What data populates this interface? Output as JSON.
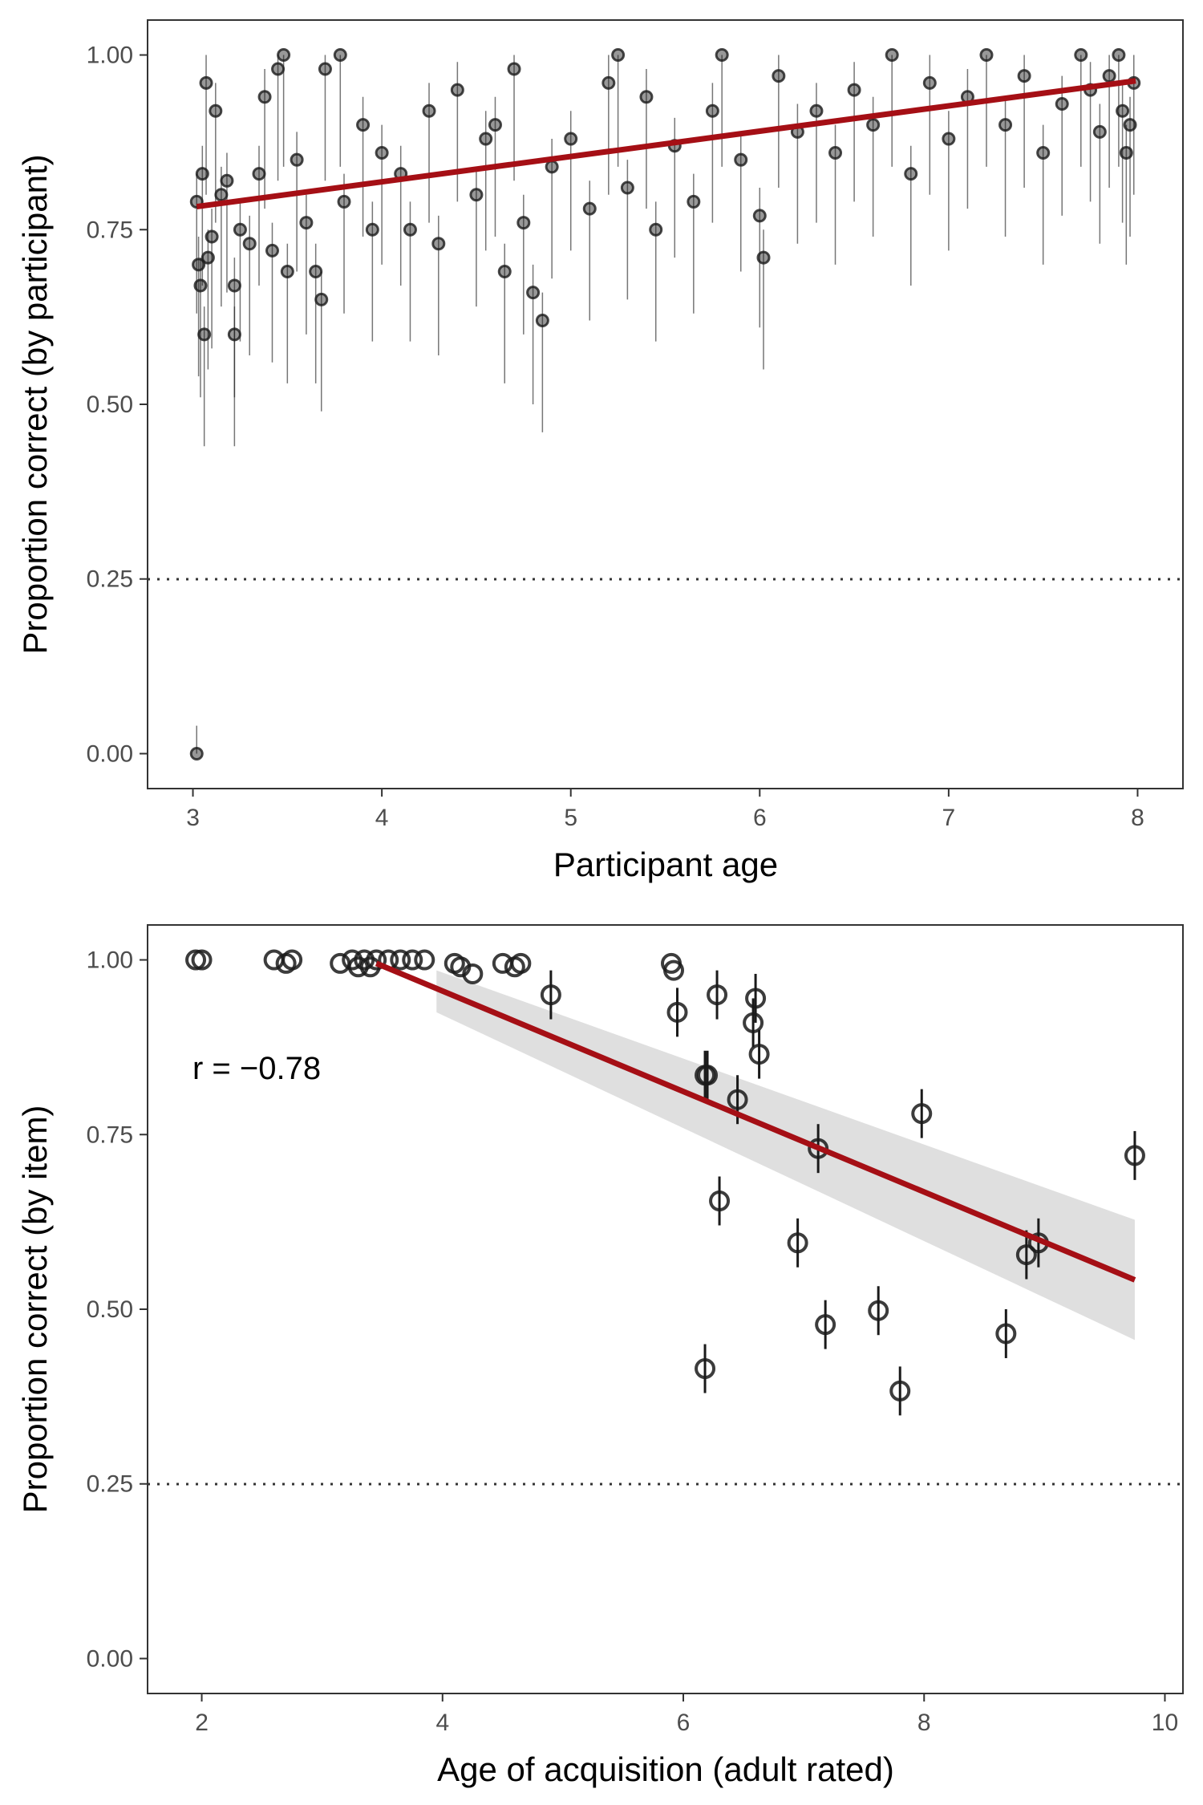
{
  "chart_data": [
    {
      "type": "scatter",
      "xlabel": "Participant age",
      "ylabel": "Proportion correct (by participant)",
      "xlim": [
        2.76,
        8.24
      ],
      "ylim": [
        -0.05,
        1.05
      ],
      "xticks": [
        3,
        4,
        5,
        6,
        7,
        8
      ],
      "yticks": [
        0.0,
        0.25,
        0.5,
        0.75,
        1.0
      ],
      "ytick_labels": [
        "0.00",
        "0.25",
        "0.50",
        "0.75",
        "1.00"
      ],
      "grid": false,
      "chance_line": 0.25,
      "series": [
        {
          "points": [
            [
              3.02,
              0.0
            ],
            [
              3.02,
              0.79
            ],
            [
              3.03,
              0.7
            ],
            [
              3.04,
              0.67
            ],
            [
              3.05,
              0.83
            ],
            [
              3.06,
              0.6
            ],
            [
              3.07,
              0.96
            ],
            [
              3.08,
              0.71
            ],
            [
              3.1,
              0.74
            ],
            [
              3.12,
              0.92
            ],
            [
              3.15,
              0.8
            ],
            [
              3.18,
              0.82
            ],
            [
              3.22,
              0.67
            ],
            [
              3.22,
              0.6
            ],
            [
              3.25,
              0.75
            ],
            [
              3.3,
              0.73
            ],
            [
              3.35,
              0.83
            ],
            [
              3.38,
              0.94
            ],
            [
              3.42,
              0.72
            ],
            [
              3.45,
              0.98
            ],
            [
              3.48,
              1.0
            ],
            [
              3.5,
              0.69
            ],
            [
              3.55,
              0.85
            ],
            [
              3.6,
              0.76
            ],
            [
              3.65,
              0.69
            ],
            [
              3.68,
              0.65
            ],
            [
              3.7,
              0.98
            ],
            [
              3.78,
              1.0
            ],
            [
              3.8,
              0.79
            ],
            [
              3.9,
              0.9
            ],
            [
              3.95,
              0.75
            ],
            [
              4.0,
              0.86
            ],
            [
              4.1,
              0.83
            ],
            [
              4.15,
              0.75
            ],
            [
              4.25,
              0.92
            ],
            [
              4.3,
              0.73
            ],
            [
              4.4,
              0.95
            ],
            [
              4.5,
              0.8
            ],
            [
              4.55,
              0.88
            ],
            [
              4.6,
              0.9
            ],
            [
              4.65,
              0.69
            ],
            [
              4.7,
              0.98
            ],
            [
              4.75,
              0.76
            ],
            [
              4.8,
              0.66
            ],
            [
              4.85,
              0.62
            ],
            [
              4.9,
              0.84
            ],
            [
              5.0,
              0.88
            ],
            [
              5.1,
              0.78
            ],
            [
              5.2,
              0.96
            ],
            [
              5.25,
              1.0
            ],
            [
              5.3,
              0.81
            ],
            [
              5.4,
              0.94
            ],
            [
              5.45,
              0.75
            ],
            [
              5.55,
              0.87
            ],
            [
              5.65,
              0.79
            ],
            [
              5.75,
              0.92
            ],
            [
              5.8,
              1.0
            ],
            [
              5.9,
              0.85
            ],
            [
              6.0,
              0.77
            ],
            [
              6.02,
              0.71
            ],
            [
              6.1,
              0.97
            ],
            [
              6.2,
              0.89
            ],
            [
              6.3,
              0.92
            ],
            [
              6.4,
              0.86
            ],
            [
              6.5,
              0.95
            ],
            [
              6.6,
              0.9
            ],
            [
              6.7,
              1.0
            ],
            [
              6.8,
              0.83
            ],
            [
              6.9,
              0.96
            ],
            [
              7.0,
              0.88
            ],
            [
              7.1,
              0.94
            ],
            [
              7.2,
              1.0
            ],
            [
              7.3,
              0.9
            ],
            [
              7.4,
              0.97
            ],
            [
              7.5,
              0.86
            ],
            [
              7.6,
              0.93
            ],
            [
              7.7,
              1.0
            ],
            [
              7.75,
              0.95
            ],
            [
              7.8,
              0.89
            ],
            [
              7.85,
              0.97
            ],
            [
              7.9,
              1.0
            ],
            [
              7.92,
              0.92
            ],
            [
              7.94,
              0.86
            ],
            [
              7.96,
              0.9
            ],
            [
              7.98,
              0.96
            ]
          ]
        }
      ],
      "fit_line": {
        "x": [
          3.02,
          7.99
        ],
        "y": [
          0.783,
          0.963
        ]
      }
    },
    {
      "type": "scatter",
      "xlabel": "Age of acquisition (adult rated)",
      "ylabel": "Proportion correct (by item)",
      "xlim": [
        1.55,
        10.15
      ],
      "ylim": [
        -0.05,
        1.05
      ],
      "xticks": [
        2,
        4,
        6,
        8,
        10
      ],
      "yticks": [
        0.0,
        0.25,
        0.5,
        0.75,
        1.0
      ],
      "ytick_labels": [
        "0.00",
        "0.25",
        "0.50",
        "0.75",
        "1.00"
      ],
      "grid": false,
      "chance_line": 0.25,
      "annotation": "r = −0.78",
      "series": [
        {
          "points": [
            [
              1.95,
              1.0
            ],
            [
              2.0,
              1.0
            ],
            [
              2.6,
              1.0
            ],
            [
              2.7,
              0.995
            ],
            [
              2.75,
              1.0
            ],
            [
              3.15,
              0.995
            ],
            [
              3.25,
              1.0
            ],
            [
              3.3,
              0.99
            ],
            [
              3.35,
              1.0
            ],
            [
              3.4,
              0.99
            ],
            [
              3.45,
              1.0
            ],
            [
              3.55,
              1.0
            ],
            [
              3.65,
              1.0
            ],
            [
              3.75,
              1.0
            ],
            [
              3.85,
              1.0
            ],
            [
              4.1,
              0.995
            ],
            [
              4.15,
              0.99
            ],
            [
              4.25,
              0.98
            ],
            [
              4.5,
              0.995
            ],
            [
              4.6,
              0.99
            ],
            [
              4.65,
              0.995
            ],
            [
              4.9,
              0.95
            ],
            [
              5.9,
              0.995
            ],
            [
              5.92,
              0.985
            ],
            [
              5.95,
              0.925
            ],
            [
              6.18,
              0.835
            ],
            [
              6.2,
              0.835
            ],
            [
              6.18,
              0.415
            ],
            [
              6.28,
              0.95
            ],
            [
              6.3,
              0.655
            ],
            [
              6.45,
              0.8
            ],
            [
              6.58,
              0.91
            ],
            [
              6.6,
              0.945
            ],
            [
              6.63,
              0.865
            ],
            [
              6.95,
              0.595
            ],
            [
              7.12,
              0.73
            ],
            [
              7.18,
              0.478
            ],
            [
              7.62,
              0.498
            ],
            [
              7.8,
              0.383
            ],
            [
              7.98,
              0.78
            ],
            [
              8.68,
              0.465
            ],
            [
              8.85,
              0.578
            ],
            [
              8.95,
              0.595
            ],
            [
              9.75,
              0.72
            ]
          ]
        }
      ],
      "fit_line": {
        "x": [
          3.45,
          9.75
        ],
        "y": [
          0.995,
          0.542
        ]
      },
      "ci_band": {
        "x": [
          3.95,
          9.75
        ],
        "lower": [
          0.925,
          0.456
        ],
        "upper": [
          0.985,
          0.628
        ]
      }
    }
  ],
  "colors": {
    "point": "#1a1a1a",
    "fit_line": "#a50f15",
    "ci_band": "#d9d9d9",
    "panel_border": "#333333",
    "tick_text": "#4d4d4d"
  }
}
